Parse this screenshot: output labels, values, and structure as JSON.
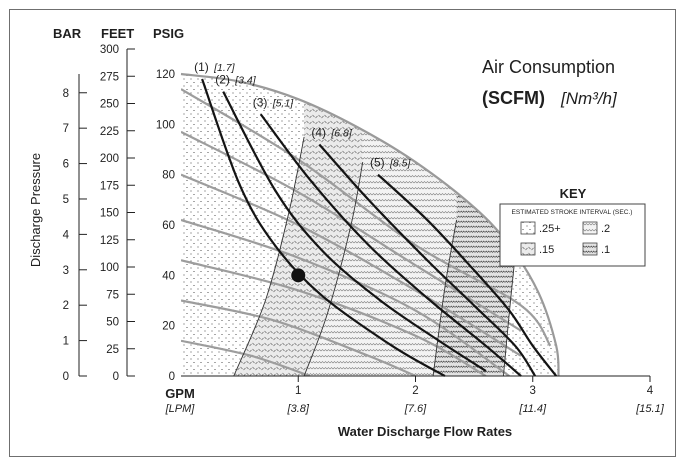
{
  "chart_data": {
    "type": "line",
    "title": "Air Consumption",
    "subtitle_bold": "(SCFM)",
    "subtitle_italic": "[Nm³/h]",
    "xlabel": "Water Discharge Flow Rates",
    "ylabel": "Discharge Pressure",
    "x_unit": "GPM",
    "x_unit_alt": "[LPM]",
    "y_axes": [
      {
        "name": "BAR",
        "range": [
          0,
          8
        ],
        "ticks": [
          "0",
          "1",
          "2",
          "3",
          "4",
          "5",
          "6",
          "7",
          "8"
        ]
      },
      {
        "name": "FEET",
        "range": [
          0,
          300
        ],
        "ticks": [
          "0",
          "25",
          "50",
          "75",
          "100",
          "125",
          "150",
          "175",
          "200",
          "225",
          "250",
          "275",
          "300"
        ]
      },
      {
        "name": "PSIG",
        "range": [
          0,
          120
        ],
        "ticks": [
          "0",
          "20",
          "40",
          "60",
          "80",
          "100",
          "120"
        ]
      }
    ],
    "x_ticks": [
      {
        "value": 0,
        "gpm": "0",
        "lpm": ""
      },
      {
        "value": 1,
        "gpm": "1",
        "lpm": "[3.8]"
      },
      {
        "value": 2,
        "gpm": "2",
        "lpm": "[7.6]"
      },
      {
        "value": 3,
        "gpm": "3",
        "lpm": "[11.4]"
      },
      {
        "value": 4,
        "gpm": "4",
        "lpm": "[15.1]"
      }
    ],
    "xlim": [
      0,
      4
    ],
    "ylim": [
      0,
      120
    ],
    "envelope": [
      [
        0,
        120
      ],
      [
        0.5,
        117
      ],
      [
        1,
        110
      ],
      [
        1.5,
        99
      ],
      [
        2,
        85
      ],
      [
        2.5,
        67
      ],
      [
        2.8,
        52
      ],
      [
        3.05,
        33
      ],
      [
        3.2,
        12
      ],
      [
        3.22,
        0
      ]
    ],
    "series": [
      {
        "name": "(1)",
        "scfm_label": "(1)",
        "nm3h_label": "[1.7]",
        "points": [
          [
            0.18,
            118
          ],
          [
            0.5,
            76
          ],
          [
            0.8,
            52
          ],
          [
            1.2,
            32
          ],
          [
            1.8,
            12
          ],
          [
            2.25,
            0
          ]
        ]
      },
      {
        "name": "(2)",
        "scfm_label": "(2)",
        "nm3h_label": "[3.4]",
        "points": [
          [
            0.36,
            113
          ],
          [
            0.8,
            74
          ],
          [
            1.2,
            50
          ],
          [
            1.7,
            30
          ],
          [
            2.2,
            14
          ],
          [
            2.6,
            2
          ]
        ]
      },
      {
        "name": "(3)",
        "scfm_label": "(3)",
        "nm3h_label": "[5.1]",
        "points": [
          [
            0.68,
            104
          ],
          [
            1.1,
            78
          ],
          [
            1.6,
            52
          ],
          [
            2.1,
            31
          ],
          [
            2.6,
            12
          ],
          [
            2.9,
            0
          ]
        ]
      },
      {
        "name": "(4)",
        "scfm_label": "(4)",
        "nm3h_label": "[6.8]",
        "points": [
          [
            1.18,
            92
          ],
          [
            1.6,
            70
          ],
          [
            2.1,
            46
          ],
          [
            2.5,
            28
          ],
          [
            2.85,
            12
          ],
          [
            3.02,
            0
          ]
        ]
      },
      {
        "name": "(5)",
        "scfm_label": "(5)",
        "nm3h_label": "[8.5]",
        "points": [
          [
            1.68,
            80
          ],
          [
            2.1,
            62
          ],
          [
            2.5,
            42
          ],
          [
            2.8,
            26
          ],
          [
            3.0,
            12
          ],
          [
            3.2,
            0
          ]
        ]
      }
    ],
    "background_curves": [
      [
        [
          0,
          114
        ],
        [
          1,
          86
        ],
        [
          2,
          52
        ],
        [
          2.9,
          28
        ],
        [
          3.15,
          12
        ]
      ],
      [
        [
          0,
          97
        ],
        [
          1,
          73
        ],
        [
          2,
          44
        ],
        [
          2.9,
          18
        ]
      ],
      [
        [
          0,
          80
        ],
        [
          1,
          60
        ],
        [
          2,
          34
        ],
        [
          2.9,
          8
        ]
      ],
      [
        [
          0,
          62
        ],
        [
          1,
          47
        ],
        [
          2,
          26
        ],
        [
          2.8,
          0
        ]
      ],
      [
        [
          0,
          46
        ],
        [
          1,
          34
        ],
        [
          2,
          16
        ],
        [
          2.6,
          0
        ]
      ],
      [
        [
          0,
          30
        ],
        [
          0.8,
          22
        ],
        [
          1.6,
          8
        ],
        [
          2.0,
          0
        ]
      ],
      [
        [
          0,
          14
        ],
        [
          0.6,
          8
        ],
        [
          1.1,
          0
        ]
      ]
    ],
    "stroke_interval_boundaries": [
      [
        [
          0.45,
          0
        ],
        [
          0.72,
          30
        ],
        [
          0.92,
          65
        ],
        [
          1.05,
          95
        ]
      ],
      [
        [
          1.05,
          0
        ],
        [
          1.25,
          25
        ],
        [
          1.45,
          60
        ],
        [
          1.55,
          85
        ]
      ],
      [
        [
          2.15,
          0
        ],
        [
          2.25,
          35
        ],
        [
          2.35,
          62
        ]
      ],
      [
        [
          2.75,
          0
        ],
        [
          2.8,
          25
        ],
        [
          2.85,
          48
        ]
      ]
    ],
    "marker": {
      "x": 1.0,
      "y": 40
    },
    "key": {
      "title": "KEY",
      "subtitle": "ESTIMATED STROKE INTERVAL (SEC.)",
      "items": [
        {
          "label": ".25+",
          "pattern": "light-dots"
        },
        {
          "label": ".2",
          "pattern": "dense-dots"
        },
        {
          "label": ".15",
          "pattern": "dash-dots"
        },
        {
          "label": ".1",
          "pattern": "zigzag"
        }
      ],
      "placement": "right"
    },
    "grid": false
  }
}
